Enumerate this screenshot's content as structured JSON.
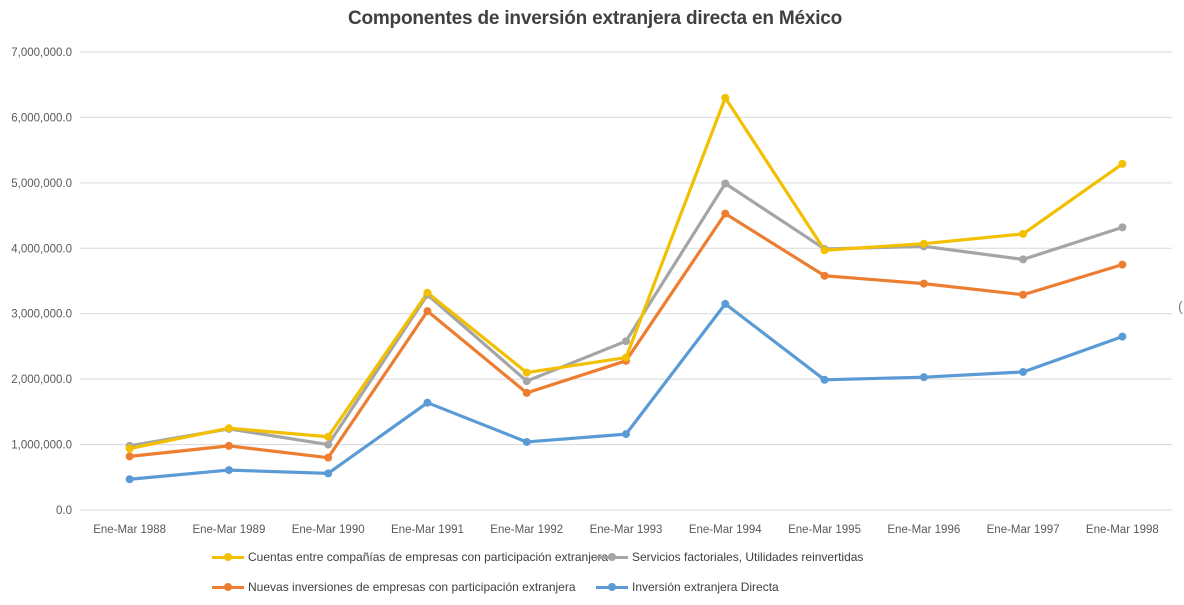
{
  "chart_data": {
    "type": "line",
    "title": "Componentes de inversión extranjera directa en México",
    "xlabel": "",
    "ylabel": "",
    "ylim": [
      0,
      7000000
    ],
    "y_ticks": [
      0,
      1000000,
      2000000,
      3000000,
      4000000,
      5000000,
      6000000,
      7000000
    ],
    "y_tick_labels": [
      "0.0",
      "1,000,000.0",
      "2,000,000.0",
      "3,000,000.0",
      "4,000,000.0",
      "5,000,000.0",
      "6,000,000.0",
      "7,000,000.0"
    ],
    "grid": "horizontal",
    "legend_position": "bottom",
    "categories": [
      "Ene-Mar 1988",
      "Ene-Mar 1989",
      "Ene-Mar 1990",
      "Ene-Mar 1991",
      "Ene-Mar 1992",
      "Ene-Mar 1993",
      "Ene-Mar 1994",
      "Ene-Mar 1995",
      "Ene-Mar 1996",
      "Ene-Mar 1997",
      "Ene-Mar 1998"
    ],
    "series": [
      {
        "name": "Inversión extranjera Directa",
        "color": "#5b9bd5",
        "values": [
          470000,
          610000,
          560000,
          1640000,
          1040000,
          1160000,
          3150000,
          1990000,
          2030000,
          2110000,
          2650000
        ]
      },
      {
        "name": "Nuevas inversiones de empresas con participación extranjera",
        "color": "#ed7d31",
        "values": [
          820000,
          980000,
          800000,
          3040000,
          1790000,
          2280000,
          4530000,
          3580000,
          3460000,
          3290000,
          3750000
        ]
      },
      {
        "name": "Servicios factoriales, Utilidades reinvertidas",
        "color": "#a5a5a5",
        "values": [
          980000,
          1240000,
          1000000,
          3290000,
          1970000,
          2580000,
          4990000,
          3990000,
          4030000,
          3830000,
          4320000
        ]
      },
      {
        "name": "Cuentas entre compañías de empresas con participación extranjera",
        "color": "#f2c000",
        "values": [
          940000,
          1250000,
          1120000,
          3320000,
          2100000,
          2330000,
          6300000,
          3970000,
          4070000,
          4220000,
          5290000
        ]
      }
    ],
    "legend_order": [
      3,
      2,
      1,
      0
    ]
  },
  "extra": {
    "right_edge_glyph": "("
  }
}
